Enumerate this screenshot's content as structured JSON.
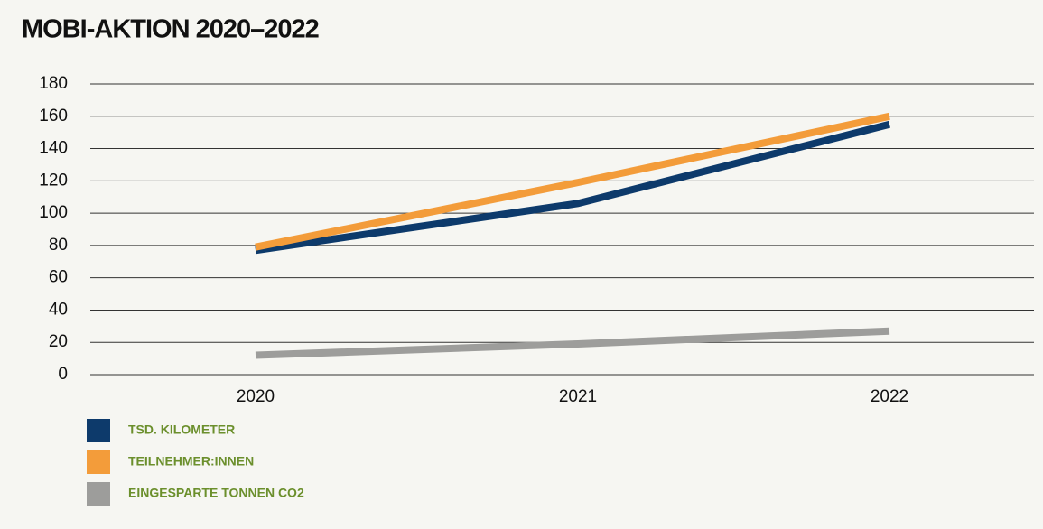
{
  "chart_data": {
    "type": "line",
    "title": "MOBI-AKTION 2020–2022",
    "categories": [
      "2020",
      "2021",
      "2022"
    ],
    "series": [
      {
        "name": "TSD. KILOMETER",
        "color": "#0d3a6b",
        "values": [
          77,
          106,
          155
        ]
      },
      {
        "name": "TEILNEHMER:INNEN",
        "color": "#f39c3a",
        "values": [
          79,
          119,
          160
        ]
      },
      {
        "name": "EINGESPARTE TONNEN CO2",
        "color": "#9d9d9b",
        "values": [
          12,
          19,
          27
        ]
      }
    ],
    "ylim": [
      0,
      180
    ],
    "yticks": [
      0,
      20,
      40,
      60,
      80,
      100,
      120,
      140,
      160,
      180
    ],
    "grid": true
  }
}
